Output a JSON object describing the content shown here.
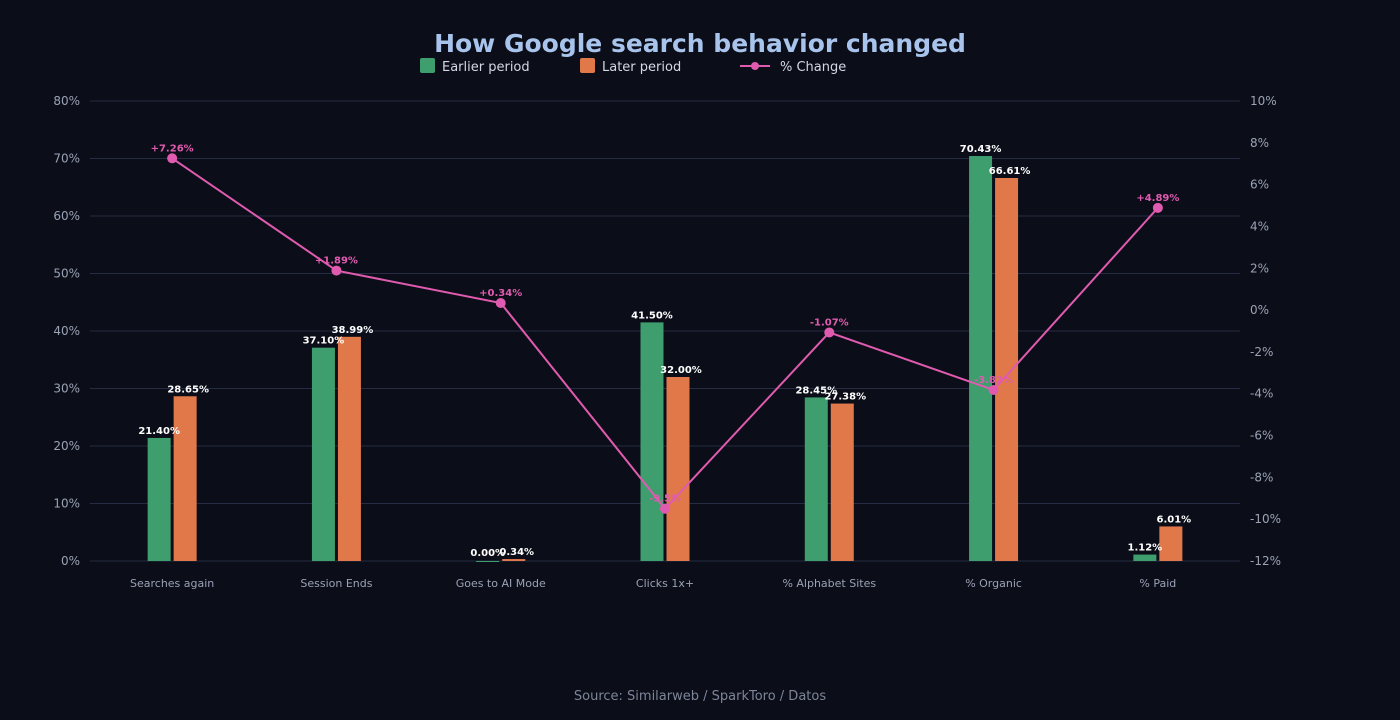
{
  "colors": {
    "earlier": "#3e9e6e",
    "later": "#e0784a",
    "change": "#e05bb0",
    "title": "#a9c4ec",
    "background": "#0b0e18"
  },
  "source": "Source: Similarweb / SparkToro / Datos",
  "chart_data": {
    "type": "bar",
    "title": "How Google search behavior changed",
    "categories": [
      "Searches again",
      "Session Ends",
      "Goes to AI Mode",
      "Clicks 1x+",
      "% Alphabet Sites",
      "% Organic",
      "% Paid"
    ],
    "series": [
      {
        "name": "Earlier period",
        "type": "bar",
        "axis": "left",
        "values": [
          21.4,
          37.1,
          0.0,
          41.5,
          28.45,
          70.43,
          1.12
        ],
        "labels": [
          "21.40%",
          "37.10%",
          "0.00%",
          "41.50%",
          "28.45%",
          "70.43%",
          "1.12%"
        ]
      },
      {
        "name": "Later period",
        "type": "bar",
        "axis": "left",
        "values": [
          28.65,
          38.99,
          0.34,
          32.0,
          27.38,
          66.61,
          6.01
        ],
        "labels": [
          "28.65%",
          "38.99%",
          "0.34%",
          "32.00%",
          "27.38%",
          "66.61%",
          "6.01%"
        ]
      },
      {
        "name": "% Change",
        "type": "line",
        "axis": "right",
        "values": [
          7.26,
          1.89,
          0.34,
          -9.5,
          -1.07,
          -3.82,
          4.89
        ],
        "labels": [
          "+7.26%",
          "+1.89%",
          "+0.34%",
          "-9.5%",
          "-1.07%",
          "-3.82%",
          "+4.89%"
        ]
      }
    ],
    "left_axis": {
      "ylim": [
        0,
        80
      ],
      "ticks": [
        "0%",
        "10%",
        "20%",
        "30%",
        "40%",
        "50%",
        "60%",
        "70%",
        "80%"
      ]
    },
    "right_axis": {
      "ylim": [
        -12,
        10
      ],
      "ticks": [
        "-12%",
        "-10%",
        "-8%",
        "-6%",
        "-4%",
        "-2%",
        "0%",
        "2%",
        "4%",
        "6%",
        "8%",
        "10%"
      ]
    },
    "grid": true,
    "legend": "top-center"
  }
}
